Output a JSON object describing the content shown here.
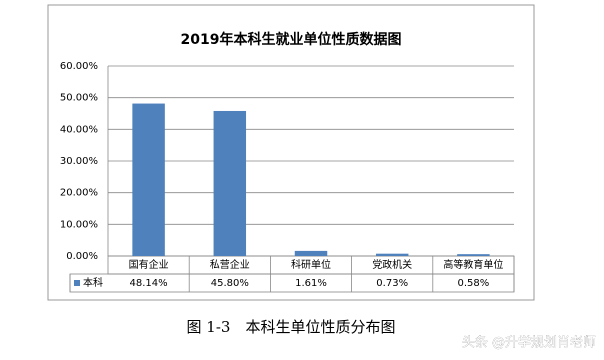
{
  "chart_data": {
    "type": "bar",
    "title": "2019年本科生就业单位性质数据图",
    "categories": [
      "国有企业",
      "私营企业",
      "科研单位",
      "党政机关",
      "高等教育单位"
    ],
    "series": [
      {
        "name": "本科",
        "color": "#4f81bd",
        "values": [
          48.14,
          45.8,
          1.61,
          0.73,
          0.58
        ],
        "value_labels": [
          "48.14%",
          "45.80%",
          "1.61%",
          "0.73%",
          "0.58%"
        ]
      }
    ],
    "ylim": [
      0,
      60
    ],
    "yticks": [
      {
        "value": 0,
        "label": "0.00%"
      },
      {
        "value": 10,
        "label": "10.00%"
      },
      {
        "value": 20,
        "label": "20.00%"
      },
      {
        "value": 30,
        "label": "30.00%"
      },
      {
        "value": 40,
        "label": "40.00%"
      },
      {
        "value": 50,
        "label": "50.00%"
      },
      {
        "value": 60,
        "label": "60.00%"
      }
    ],
    "grid": true
  },
  "caption": "图 1-3　本科生单位性质分布图",
  "watermark": "头条 @升学规划肖老师"
}
